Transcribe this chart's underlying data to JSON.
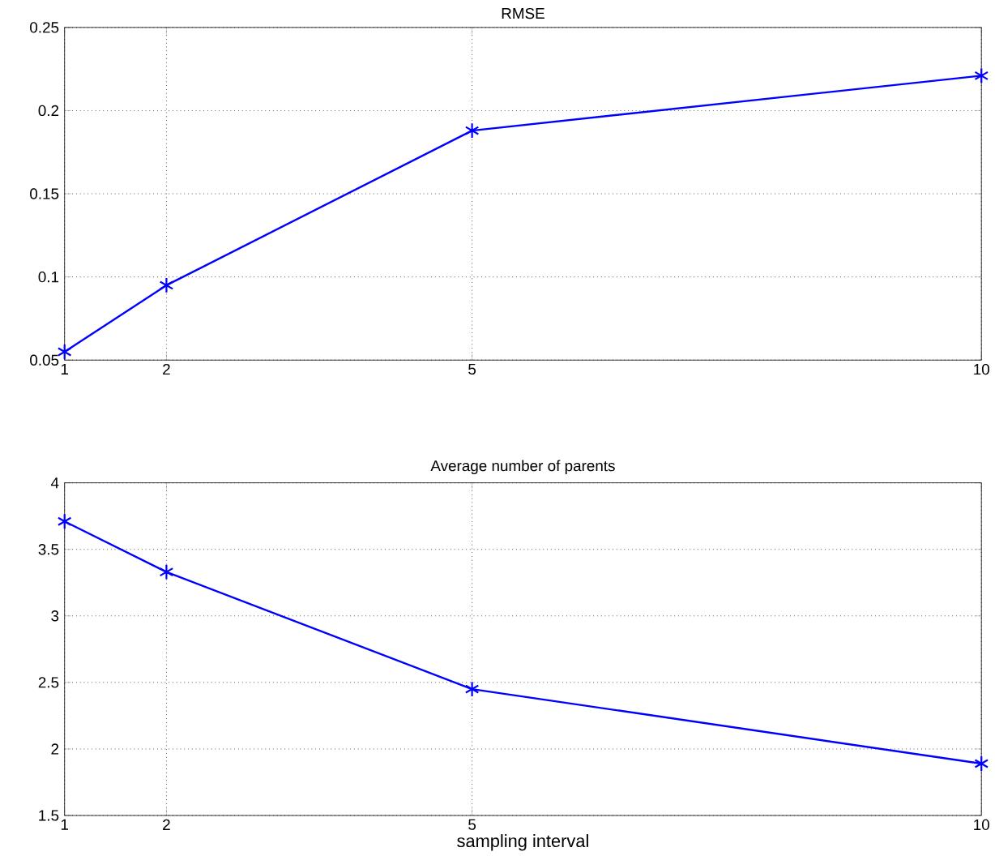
{
  "chart_data": [
    {
      "type": "line",
      "title": "RMSE",
      "x": [
        1,
        2,
        5,
        10
      ],
      "series": [
        {
          "color": "#0000ff",
          "values": [
            0.055,
            0.095,
            0.188,
            0.221
          ]
        }
      ],
      "xlim": [
        1,
        10
      ],
      "xticks": [
        1,
        2,
        5,
        10
      ],
      "ylim": [
        0.05,
        0.25
      ],
      "yticks": [
        0.05,
        0.1,
        0.15,
        0.2,
        0.25
      ],
      "grid": true,
      "marker": "cross",
      "line_style": "solid"
    },
    {
      "type": "line",
      "title": "Average number of parents",
      "xlabel": "sampling interval",
      "x": [
        1,
        2,
        5,
        10
      ],
      "series": [
        {
          "color": "#0000ff",
          "values": [
            3.71,
            3.33,
            2.45,
            1.89
          ]
        }
      ],
      "xlim": [
        1,
        10
      ],
      "xticks": [
        1,
        2,
        5,
        10
      ],
      "ylim": [
        1.5,
        4
      ],
      "yticks": [
        1.5,
        2,
        2.5,
        3,
        3.5,
        4
      ],
      "grid": true,
      "marker": "cross",
      "line_style": "solid"
    }
  ]
}
